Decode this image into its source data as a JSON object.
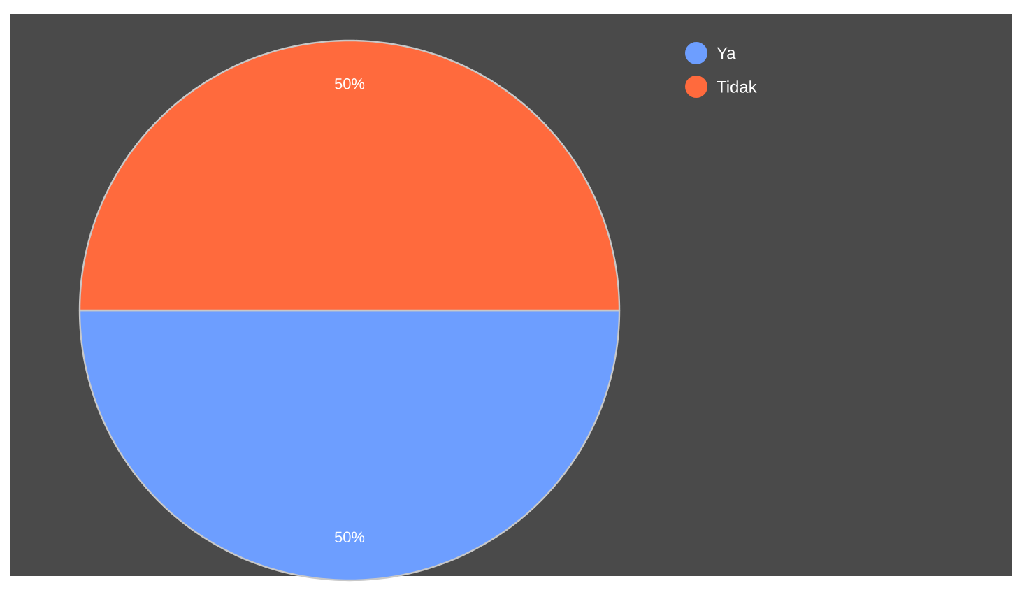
{
  "chart_data": {
    "type": "pie",
    "categories": [
      "Ya",
      "Tidak"
    ],
    "values": [
      50,
      50
    ],
    "colors": [
      "#6d9eff",
      "#ff6a3d"
    ],
    "value_labels": [
      "50%",
      "50%"
    ],
    "legend": "top right"
  }
}
